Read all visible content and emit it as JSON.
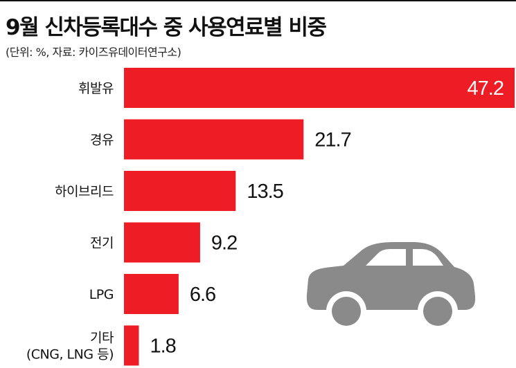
{
  "title": "9월 신차등록대수 중 사용연료별 비중",
  "subtitle": "(단위: %, 자료: 카이즈유데이터연구소)",
  "colors": {
    "bar": "#ee1c25",
    "label_inside": "#ffffff",
    "label_outside": "#111111",
    "car": "#8a8a8a"
  },
  "icons": {
    "illustration": "car-icon"
  },
  "chart_data": {
    "type": "bar",
    "orientation": "horizontal",
    "title": "9월 신차등록대수 중 사용연료별 비중",
    "subtitle": "(단위: %, 자료: 카이즈유데이터연구소)",
    "categories": [
      [
        "휘발유"
      ],
      [
        "경유"
      ],
      [
        "하이브리드"
      ],
      [
        "전기"
      ],
      [
        "LPG"
      ],
      [
        "기타",
        "(CNG, LNG 등)"
      ]
    ],
    "values": [
      47.2,
      21.7,
      13.5,
      9.2,
      6.6,
      1.8
    ],
    "value_labels": [
      "47.2",
      "21.7",
      "13.5",
      "9.2",
      "6.6",
      "1.8"
    ],
    "xlim": [
      0,
      47.2
    ],
    "grid": false,
    "legend": "none"
  }
}
